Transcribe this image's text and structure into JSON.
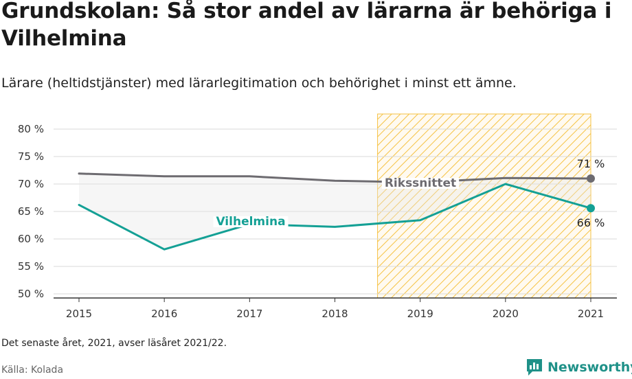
{
  "header": {
    "title": "Grundskolan: Så stor andel av lärarna är behöriga i Vilhelmina",
    "subtitle": "Lärare (heltidstjänster) med lärarlegitimation och behörighet i minst ett ämne."
  },
  "footer": {
    "note": "Det senaste året, 2021, avser läsåret 2021/22.",
    "source": "Källa: Kolada",
    "brand": "Newsworthy"
  },
  "colors": {
    "riks": "#6d6b70",
    "vilhelmina": "#14a095",
    "highlight": "#f5c242",
    "grid": "#d9d9d9",
    "band": "#e5e5e5"
  },
  "chart_data": {
    "type": "line",
    "x": [
      2015,
      2016,
      2017,
      2018,
      2019,
      2020,
      2021
    ],
    "yticks": [
      50,
      55,
      60,
      65,
      70,
      75,
      80
    ],
    "ytick_labels": [
      "50 %",
      "55 %",
      "60 %",
      "65 %",
      "70 %",
      "75 %",
      "80 %"
    ],
    "ylim": [
      50,
      80
    ],
    "highlight_range": [
      2018.5,
      2021
    ],
    "series": [
      {
        "name": "Rikssnittet",
        "color": "#6d6b70",
        "values": [
          71.9,
          71.4,
          71.4,
          70.6,
          70.3,
          71.1,
          71.0
        ],
        "end_label": "71 %"
      },
      {
        "name": "Vilhelmina",
        "color": "#14a095",
        "values": [
          66.2,
          58.1,
          62.7,
          62.2,
          63.4,
          70.0,
          65.6
        ],
        "end_label": "66 %"
      }
    ]
  }
}
